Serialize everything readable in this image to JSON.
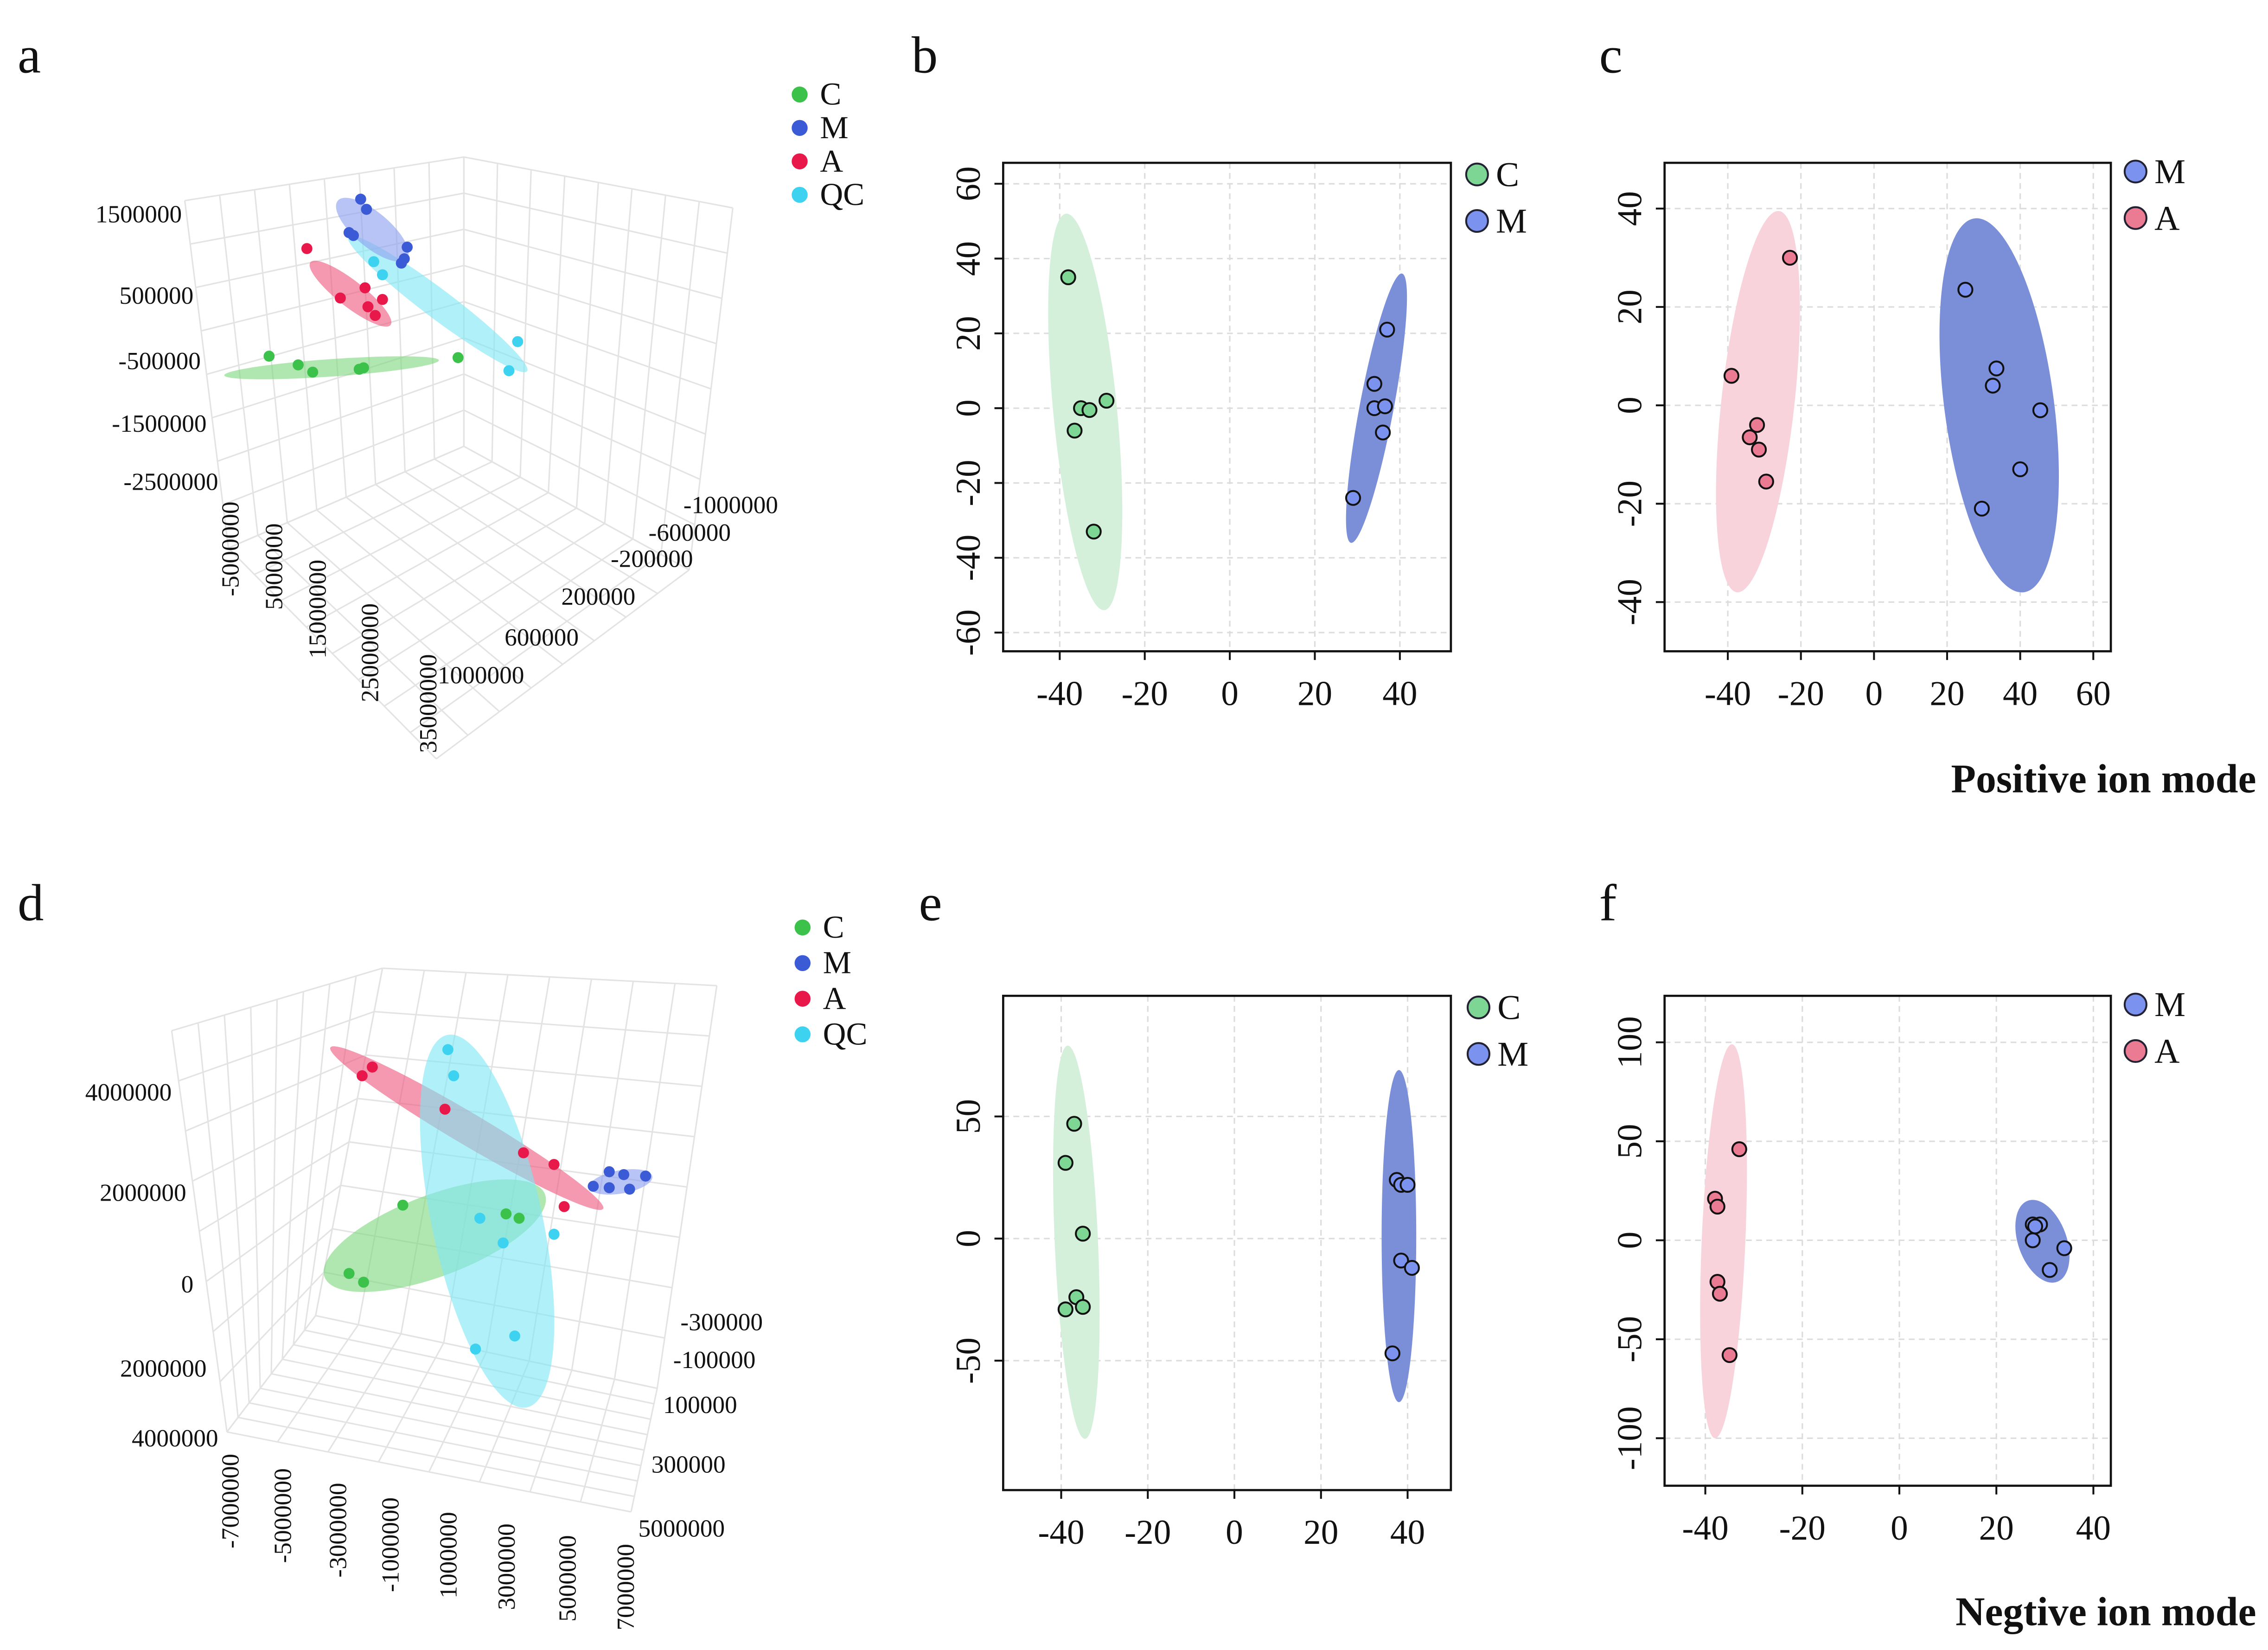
{
  "figure": {
    "positive_mode_label": "Positive ion mode",
    "negative_mode_label": "Negtive ion mode"
  },
  "colors": {
    "3d": {
      "C": "#3cc24a",
      "M": "#3b5bd6",
      "A": "#e8194a",
      "QC": "#3dd3f0"
    },
    "3d_ellipse": {
      "C": "#7fd97f",
      "M": "#8e9ff0",
      "A": "#ee5a7f",
      "QC": "#7fe6f4"
    },
    "2d_point": {
      "C": "#7ed694",
      "M": "#7b93ee",
      "A": "#ea7b92"
    },
    "2d_ellipse": {
      "C": "#d4f0da",
      "M": "#7b8fd9",
      "A": "#f8d3dc"
    }
  },
  "chart_data": [
    {
      "panel": "a",
      "type": "scatter3d",
      "mode": "positive",
      "legend": [
        "C",
        "M",
        "A",
        "QC"
      ],
      "z_ticks": [
        "1500000",
        "500000",
        "-500000",
        "-1500000",
        "-2500000"
      ],
      "x_ticks": [
        "-5000000",
        "5000000",
        "15000000",
        "25000000",
        "35000000"
      ],
      "y_ticks": [
        "-1000000",
        "-600000",
        "-200000",
        "200000",
        "600000",
        "1000000"
      ],
      "group_sizes": {
        "C": 6,
        "M": 7,
        "A": 6,
        "QC": 4
      },
      "ellipses": true,
      "grid": true
    },
    {
      "panel": "b",
      "type": "scatter",
      "mode": "positive",
      "legend": [
        "C",
        "M"
      ],
      "xlim": [
        -53.3,
        52
      ],
      "ylim": [
        -65,
        65.6
      ],
      "xticks": [
        -40,
        -20,
        0,
        20,
        40
      ],
      "yticks": [
        -60,
        -40,
        -20,
        0,
        20,
        40,
        60
      ],
      "grid": true,
      "series": [
        {
          "name": "C",
          "points": [
            [
              -38,
              35
            ],
            [
              -35,
              0
            ],
            [
              -33,
              -0.5
            ],
            [
              -29,
              2
            ],
            [
              -36.5,
              -6
            ],
            [
              -32,
              -33
            ]
          ],
          "ellipse": {
            "major": [
              [
                -38.5,
                52
              ],
              [
                -29.5,
                -54
              ]
            ],
            "minor_half": 7.5
          }
        },
        {
          "name": "M",
          "points": [
            [
              37,
              21
            ],
            [
              34,
              6.5
            ],
            [
              34,
              0
            ],
            [
              36.5,
              0.5
            ],
            [
              36,
              -6.5
            ],
            [
              29,
              -24
            ]
          ],
          "ellipse": {
            "major": [
              [
                40.5,
                36
              ],
              [
                28.5,
                -36
              ]
            ],
            "minor_half": 4
          }
        }
      ]
    },
    {
      "panel": "c",
      "type": "scatter",
      "mode": "positive",
      "legend": [
        "M",
        "A"
      ],
      "xlim": [
        -57.3,
        64.8
      ],
      "ylim": [
        -50,
        49.3
      ],
      "xticks": [
        -40,
        -20,
        0,
        20,
        40,
        60
      ],
      "yticks": [
        -40,
        -20,
        0,
        20,
        40
      ],
      "grid": true,
      "series": [
        {
          "name": "M",
          "points": [
            [
              25,
              23.5
            ],
            [
              33.5,
              7.5
            ],
            [
              32.5,
              4
            ],
            [
              45.5,
              -1
            ],
            [
              40,
              -13
            ],
            [
              29.5,
              -21
            ]
          ],
          "ellipse": {
            "major": [
              [
                27.5,
                38
              ],
              [
                41,
                -38
              ]
            ],
            "minor_half": 15
          }
        },
        {
          "name": "A",
          "points": [
            [
              -23,
              30
            ],
            [
              -39,
              6
            ],
            [
              -32,
              -4
            ],
            [
              -34,
              -6.5
            ],
            [
              -31.5,
              -9
            ],
            [
              -29.5,
              -15.5
            ]
          ],
          "ellipse": {
            "major": [
              [
                -26,
                39.5
              ],
              [
                -37.5,
                -38
              ]
            ],
            "minor_half": 10
          }
        }
      ]
    },
    {
      "panel": "d",
      "type": "scatter3d",
      "mode": "negative",
      "legend": [
        "C",
        "M",
        "A",
        "QC"
      ],
      "z_ticks": [
        "4000000",
        "2000000",
        "0",
        "2000000",
        "4000000"
      ],
      "x_ticks": [
        "-7000000",
        "-5000000",
        "-3000000",
        "-1000000",
        "1000000",
        "3000000",
        "5000000",
        "7000000"
      ],
      "y_ticks": [
        "-300000",
        "-100000",
        "100000",
        "300000",
        "5000000"
      ],
      "group_sizes": {
        "C": 5,
        "M": 6,
        "A": 6,
        "QC": 7
      },
      "ellipses": true,
      "grid": true
    },
    {
      "panel": "e",
      "type": "scatter",
      "mode": "negative",
      "legend": [
        "C",
        "M"
      ],
      "xlim": [
        -53.4,
        50
      ],
      "ylim": [
        -103,
        99.4
      ],
      "xticks": [
        -40,
        -20,
        0,
        20,
        40
      ],
      "yticks": [
        -50,
        0,
        50
      ],
      "grid": true,
      "series": [
        {
          "name": "C",
          "points": [
            [
              -37,
              47
            ],
            [
              -39,
              31
            ],
            [
              -35,
              2
            ],
            [
              -36.5,
              -24
            ],
            [
              -39,
              -29
            ],
            [
              -35,
              -28
            ]
          ],
          "ellipse": {
            "major": [
              [
                -38.5,
                79
              ],
              [
                -34.5,
                -82
              ]
            ],
            "minor_half": 5
          }
        },
        {
          "name": "M",
          "points": [
            [
              37.5,
              24
            ],
            [
              38.5,
              22
            ],
            [
              40,
              22
            ],
            [
              38.5,
              -9
            ],
            [
              41,
              -12
            ],
            [
              36.5,
              -47
            ]
          ],
          "ellipse": {
            "major": [
              [
                38,
                69
              ],
              [
                38,
                -67
              ]
            ],
            "minor_half": 4
          }
        }
      ]
    },
    {
      "panel": "f",
      "type": "scatter",
      "mode": "negative",
      "legend": [
        "M",
        "A"
      ],
      "xlim": [
        -48.4,
        43.6
      ],
      "ylim": [
        -124,
        123.5
      ],
      "xticks": [
        -40,
        -20,
        0,
        20,
        40
      ],
      "yticks": [
        -100,
        -50,
        0,
        50,
        100
      ],
      "grid": true,
      "series": [
        {
          "name": "M",
          "points": [
            [
              27.5,
              8
            ],
            [
              29,
              8
            ],
            [
              28,
              7
            ],
            [
              27.5,
              0
            ],
            [
              34,
              -4
            ],
            [
              31,
              -15
            ]
          ],
          "ellipse": {
            "major": [
              [
                26.5,
                20
              ],
              [
                32.5,
                -21
              ]
            ],
            "minor_half": 5
          }
        },
        {
          "name": "A",
          "points": [
            [
              -33,
              46
            ],
            [
              -38,
              21
            ],
            [
              -37.5,
              17
            ],
            [
              -37.5,
              -21
            ],
            [
              -37,
              -27
            ],
            [
              -35,
              -58
            ]
          ],
          "ellipse": {
            "major": [
              [
                -34.5,
                99
              ],
              [
                -38,
                -100
              ]
            ],
            "minor_half": 4.5
          }
        }
      ]
    }
  ]
}
